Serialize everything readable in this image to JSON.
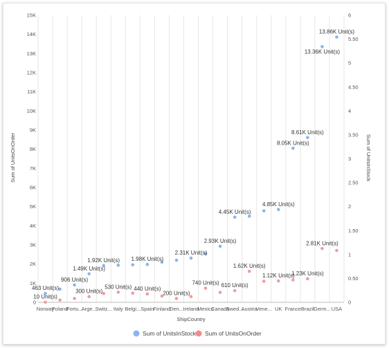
{
  "chart_data": {
    "type": "scatter",
    "xlabel": "ShipCountry",
    "ylabel_left": "Sum of UnitsOnOrder",
    "ylabel_right": "Sum of UnitsInStock",
    "categories": [
      "Norway",
      "Poland",
      "Portu...",
      "Arge...",
      "Switz...",
      "Italy",
      "Belgi...",
      "Spain",
      "Finland",
      "Den...",
      "Ireland",
      "Mexico",
      "Canada",
      "Swed...",
      "Austria",
      "Vene...",
      "UK",
      "France",
      "Brazil",
      "Germ...",
      "USA"
    ],
    "y_left": {
      "min": 0,
      "max": 15000,
      "ticks": [
        "0",
        "1K",
        "2K",
        "3K",
        "4K",
        "5K",
        "6K",
        "7K",
        "8K",
        "9K",
        "10K",
        "11K",
        "12K",
        "13K",
        "14K",
        "15K"
      ]
    },
    "y_right": {
      "min": 0,
      "max": 6,
      "ticks": [
        "0",
        "0.50",
        "1",
        "1.50",
        "2",
        "2.50",
        "3",
        "3.50",
        "4",
        "4.50",
        "5",
        "5.50",
        "6"
      ]
    },
    "grid": true,
    "legend_position": "bottom",
    "series": [
      {
        "name": "Sum of UnitsInStock",
        "color": "#8bb4f2",
        "points": [
          {
            "x": "Norway",
            "y": 463,
            "label": "463 Unit(s)"
          },
          {
            "x": "Poland",
            "y": 690,
            "label": ""
          },
          {
            "x": "Portu...",
            "y": 906,
            "label": "906 Unit(s)"
          },
          {
            "x": "Arge...",
            "y": 1490,
            "label": "1.49K Unit(s)"
          },
          {
            "x": "Switz...",
            "y": 1920,
            "label": "1.92K Unit(s)"
          },
          {
            "x": "Italy",
            "y": 1940,
            "label": ""
          },
          {
            "x": "Belgi...",
            "y": 1960,
            "label": ""
          },
          {
            "x": "Spain",
            "y": 1980,
            "label": "1.98K Unit(s)"
          },
          {
            "x": "Finland",
            "y": 2100,
            "label": ""
          },
          {
            "x": "Den...",
            "y": 2200,
            "label": ""
          },
          {
            "x": "Ireland",
            "y": 2310,
            "label": "2.31K Unit(s)"
          },
          {
            "x": "Mexico",
            "y": 2540,
            "label": ""
          },
          {
            "x": "Canada",
            "y": 2930,
            "label": "2.93K Unit(s)"
          },
          {
            "x": "Swed...",
            "y": 4450,
            "label": "4.45K Unit(s)"
          },
          {
            "x": "Austria",
            "y": 4500,
            "label": ""
          },
          {
            "x": "Vene...",
            "y": 4780,
            "label": ""
          },
          {
            "x": "UK",
            "y": 4850,
            "label": "4.85K Unit(s)"
          },
          {
            "x": "France",
            "y": 8050,
            "label": "8.05K Unit(s)"
          },
          {
            "x": "Brazil",
            "y": 8610,
            "label": "8.61K Unit(s)"
          },
          {
            "x": "Germ...",
            "y": 13360,
            "label": "13.36K Unit(s)"
          },
          {
            "x": "USA",
            "y": 13860,
            "label": "13.86K Unit(s)"
          }
        ]
      },
      {
        "name": "Sum of UnitsOnOrder",
        "color": "#f29b9b",
        "points": [
          {
            "x": "Norway",
            "y": 10,
            "label": "10 Unit(s)"
          },
          {
            "x": "Poland",
            "y": 120,
            "label": ""
          },
          {
            "x": "Portu...",
            "y": 200,
            "label": ""
          },
          {
            "x": "Arge...",
            "y": 300,
            "label": "300 Unit(s)"
          },
          {
            "x": "Switz...",
            "y": 460,
            "label": ""
          },
          {
            "x": "Italy",
            "y": 530,
            "label": "530 Unit(s)"
          },
          {
            "x": "Belgi...",
            "y": 480,
            "label": ""
          },
          {
            "x": "Spain",
            "y": 440,
            "label": "440 Unit(s)"
          },
          {
            "x": "Finland",
            "y": 330,
            "label": ""
          },
          {
            "x": "Den...",
            "y": 200,
            "label": "200 Unit(s)"
          },
          {
            "x": "Ireland",
            "y": 300,
            "label": ""
          },
          {
            "x": "Mexico",
            "y": 740,
            "label": "740 Unit(s)"
          },
          {
            "x": "Canada",
            "y": 520,
            "label": ""
          },
          {
            "x": "Swed...",
            "y": 610,
            "label": "610 Unit(s)"
          },
          {
            "x": "Austria",
            "y": 1620,
            "label": "1.62K Unit(s)"
          },
          {
            "x": "Vene...",
            "y": 1100,
            "label": ""
          },
          {
            "x": "UK",
            "y": 1120,
            "label": "1.12K Unit(s)"
          },
          {
            "x": "France",
            "y": 1170,
            "label": ""
          },
          {
            "x": "Brazil",
            "y": 1230,
            "label": "1.23K Unit(s)"
          },
          {
            "x": "Germ...",
            "y": 2810,
            "label": "2.81K Unit(s)"
          },
          {
            "x": "USA",
            "y": 2710,
            "label": ""
          }
        ]
      }
    ]
  }
}
